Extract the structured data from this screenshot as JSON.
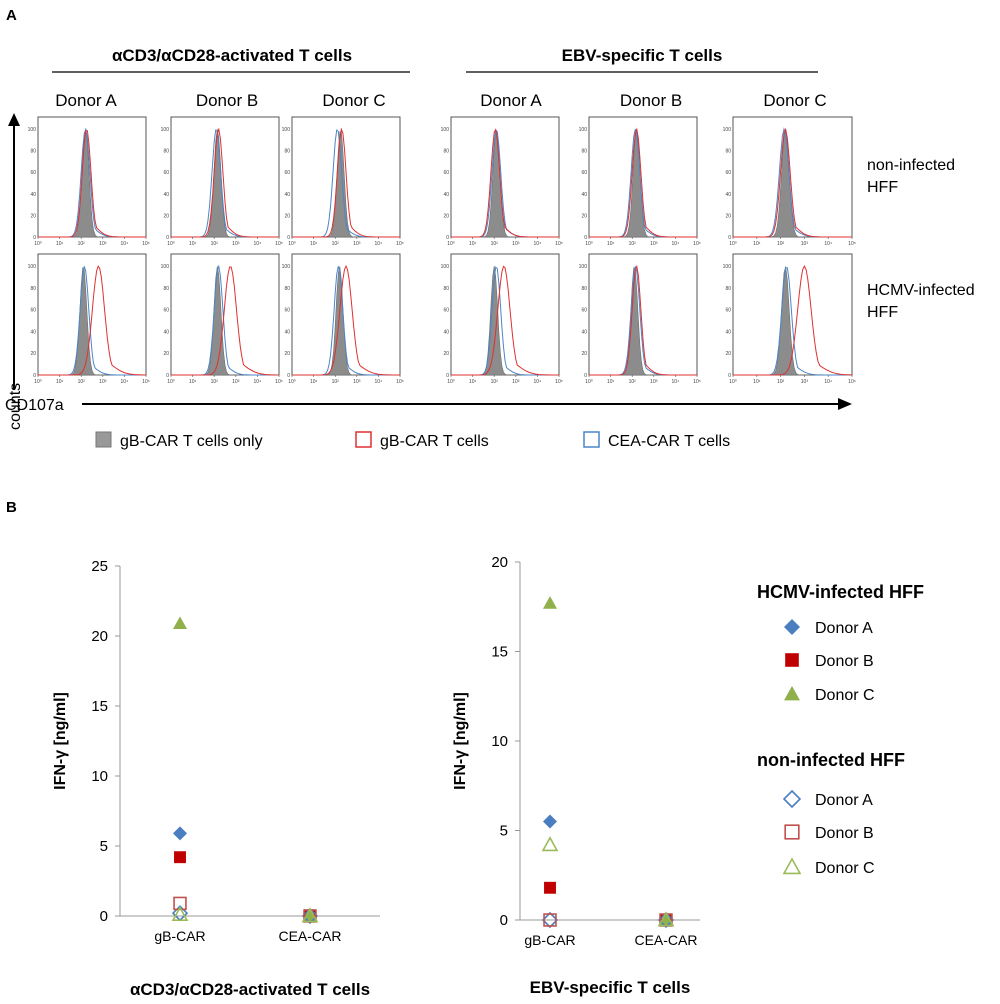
{
  "panel_a": {
    "letter": "A",
    "groups": [
      {
        "title": "αCD3/αCD28-activated T cells",
        "donors": [
          "Donor A",
          "Donor B",
          "Donor C"
        ]
      },
      {
        "title": "EBV-specific T cells",
        "donors": [
          "Donor A",
          "Donor B",
          "Donor C"
        ]
      }
    ],
    "row_labels": [
      {
        "line1": "non-infected",
        "line2": "HFF"
      },
      {
        "line1": "HCMV-infected",
        "line2": "HFF"
      }
    ],
    "y_axis_label": "counts",
    "x_axis_label": "CD107a",
    "hist_yticks": [
      "0",
      "20",
      "40",
      "60",
      "80",
      "100"
    ],
    "hist_xticks": [
      "10⁰",
      "10¹",
      "10²",
      "10³",
      "10⁴",
      "10⁵"
    ],
    "legend": [
      {
        "label": "gB-CAR T cells only",
        "color": "#999999",
        "style": "filled"
      },
      {
        "label": "gB-CAR T cells",
        "color": "#e03030",
        "style": "open"
      },
      {
        "label": "CEA-CAR T cells",
        "color": "#4a86c8",
        "style": "open"
      }
    ],
    "histograms": [
      {
        "row": 0,
        "group": 0,
        "donor": 0,
        "grey": 2.2,
        "red": 2.25,
        "blue": 2.2
      },
      {
        "row": 0,
        "group": 0,
        "donor": 1,
        "grey": 2.15,
        "red": 2.2,
        "blue": 2.1
      },
      {
        "row": 0,
        "group": 0,
        "donor": 2,
        "grey": 2.25,
        "red": 2.3,
        "blue": 2.1
      },
      {
        "row": 0,
        "group": 1,
        "donor": 0,
        "grey": 2.1,
        "red": 2.05,
        "blue": 2.1
      },
      {
        "row": 0,
        "group": 1,
        "donor": 1,
        "grey": 2.2,
        "red": 2.2,
        "blue": 2.15
      },
      {
        "row": 0,
        "group": 1,
        "donor": 2,
        "grey": 2.2,
        "red": 2.2,
        "blue": 2.15
      },
      {
        "row": 1,
        "group": 0,
        "donor": 0,
        "grey": 2.1,
        "red": 2.8,
        "blue": 2.15
      },
      {
        "row": 1,
        "group": 0,
        "donor": 1,
        "grey": 2.15,
        "red": 2.75,
        "blue": 2.2
      },
      {
        "row": 1,
        "group": 0,
        "donor": 2,
        "grey": 2.2,
        "red": 2.5,
        "blue": 2.15
      },
      {
        "row": 1,
        "group": 1,
        "donor": 0,
        "grey": 2.0,
        "red": 2.45,
        "blue": 2.1
      },
      {
        "row": 1,
        "group": 1,
        "donor": 1,
        "grey": 2.1,
        "red": 2.2,
        "blue": 2.15
      },
      {
        "row": 1,
        "group": 1,
        "donor": 2,
        "grey": 2.2,
        "red": 3.0,
        "blue": 2.25
      }
    ]
  },
  "panel_b": {
    "letter": "B",
    "legend": {
      "header1": "HCMV-infected HFF",
      "header2": "non-infected HFF",
      "items1": [
        "Donor A",
        "Donor B",
        "Donor C"
      ],
      "items2": [
        "Donor A",
        "Donor B",
        "Donor C"
      ]
    }
  },
  "chart_data": [
    {
      "type": "scatter",
      "title": "αCD3/αCD28-activated T cells",
      "ylabel": "IFN-γ [ng/ml]",
      "xlabel": "",
      "categories": [
        "gB-CAR",
        "CEA-CAR"
      ],
      "ylim": [
        0,
        25
      ],
      "yticks": [
        0,
        5,
        10,
        15,
        20,
        25
      ],
      "series": [
        {
          "name": "HCMV-infected HFF Donor A",
          "marker": "diamond",
          "filled": true,
          "color": "#4a7ec0",
          "values": [
            5.9,
            0.05
          ]
        },
        {
          "name": "HCMV-infected HFF Donor B",
          "marker": "square",
          "filled": true,
          "color": "#c00000",
          "values": [
            4.2,
            0.05
          ]
        },
        {
          "name": "HCMV-infected HFF Donor C",
          "marker": "triangle",
          "filled": true,
          "color": "#8fb04a",
          "values": [
            20.9,
            0.05
          ]
        },
        {
          "name": "non-infected HFF Donor A",
          "marker": "diamond",
          "filled": false,
          "color": "#4a7ec0",
          "values": [
            0.2,
            0.0
          ]
        },
        {
          "name": "non-infected HFF Donor B",
          "marker": "square",
          "filled": false,
          "color": "#c0504d",
          "values": [
            0.9,
            0.0
          ]
        },
        {
          "name": "non-infected HFF Donor C",
          "marker": "triangle",
          "filled": false,
          "color": "#9bbb59",
          "values": [
            0.1,
            0.0
          ]
        }
      ]
    },
    {
      "type": "scatter",
      "title": "EBV-specific T cells",
      "ylabel": "IFN-γ [ng/ml]",
      "xlabel": "",
      "categories": [
        "gB-CAR",
        "CEA-CAR"
      ],
      "ylim": [
        0,
        20
      ],
      "yticks": [
        0,
        5,
        10,
        15,
        20
      ],
      "series": [
        {
          "name": "HCMV-infected HFF Donor A",
          "marker": "diamond",
          "filled": true,
          "color": "#4a7ec0",
          "values": [
            5.5,
            0.0
          ]
        },
        {
          "name": "HCMV-infected HFF Donor B",
          "marker": "square",
          "filled": true,
          "color": "#c00000",
          "values": [
            1.8,
            0.0
          ]
        },
        {
          "name": "HCMV-infected HFF Donor C",
          "marker": "triangle",
          "filled": true,
          "color": "#8fb04a",
          "values": [
            17.7,
            0.0
          ]
        },
        {
          "name": "non-infected HFF Donor A",
          "marker": "diamond",
          "filled": false,
          "color": "#4a7ec0",
          "values": [
            0.0,
            0.0
          ]
        },
        {
          "name": "non-infected HFF Donor B",
          "marker": "square",
          "filled": false,
          "color": "#c0504d",
          "values": [
            0.0,
            0.0
          ]
        },
        {
          "name": "non-infected HFF Donor C",
          "marker": "triangle",
          "filled": false,
          "color": "#9bbb59",
          "values": [
            4.2,
            0.0
          ]
        }
      ]
    }
  ]
}
